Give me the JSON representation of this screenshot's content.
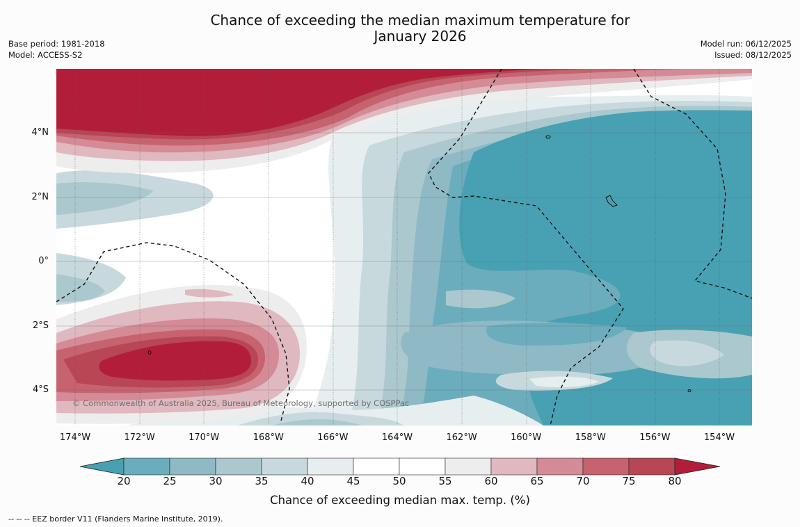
{
  "header": {
    "title_line1": "Chance of exceeding the median maximum temperature for",
    "title_line2": "January 2026",
    "base_period": "Base period: 1981-2018",
    "model": "Model: ACCESS-S2",
    "model_run": "Model run: 06/12/2025",
    "issued": "Issued: 08/12/2025"
  },
  "map": {
    "lat_labels": [
      "4°N",
      "2°N",
      "0°",
      "2°S",
      "4°S"
    ],
    "lon_labels": [
      "174°W",
      "172°W",
      "170°W",
      "168°W",
      "166°W",
      "164°W",
      "162°W",
      "160°W",
      "158°W",
      "156°W",
      "154°W"
    ],
    "copyright": "© Commonwealth of Australia 2025, Bureau of Meteorology, supported by COSPPac"
  },
  "colorbar": {
    "ticks": [
      "20",
      "25",
      "30",
      "35",
      "40",
      "45",
      "50",
      "55",
      "60",
      "65",
      "70",
      "75",
      "80"
    ],
    "colors": [
      "#48a1b2",
      "#6badbc",
      "#8fbac5",
      "#abc8ce",
      "#c8d9dd",
      "#e7eeef",
      "#ffffff",
      "#ffffff",
      "#ededed",
      "#e0b8bf",
      "#d48b96",
      "#c6636f",
      "#b84655",
      "#b21e3a"
    ],
    "label": "Chance of exceeding median max. temp. (%)"
  },
  "legend": {
    "eez_line": "--  --  -- EEZ border V11 (Flanders Marine Institute, 2019)."
  }
}
